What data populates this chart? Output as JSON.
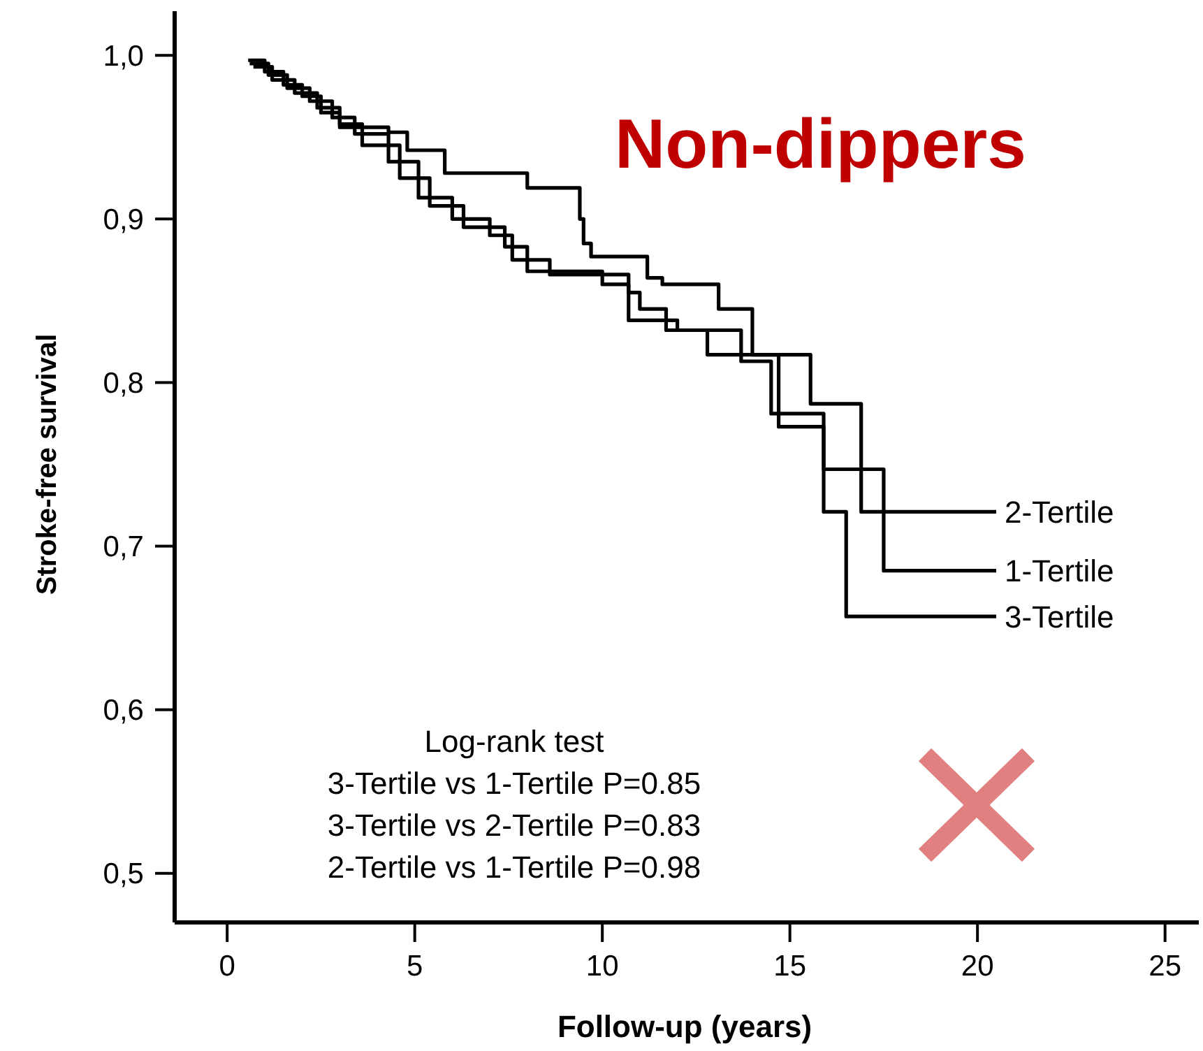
{
  "chart_data": {
    "type": "step",
    "title": "Non-dippers",
    "xlabel": "Follow-up (years)",
    "ylabel": "Stroke-free survival",
    "xlim": [
      -1.4,
      25.9
    ],
    "ylim": [
      0.47,
      1.027
    ],
    "xticks": [
      0,
      5,
      10,
      15,
      20,
      25
    ],
    "yticks": [
      {
        "value": 0.5,
        "label": "0,5"
      },
      {
        "value": 0.6,
        "label": "0,6"
      },
      {
        "value": 0.7,
        "label": "0,7"
      },
      {
        "value": 0.8,
        "label": "0,8"
      },
      {
        "value": 0.9,
        "label": "0,9"
      },
      {
        "value": 1.0,
        "label": "1,0"
      }
    ],
    "grid": false,
    "legend": false,
    "marker": "none",
    "line_style": "solid",
    "series": [
      {
        "name": "2-Tertile",
        "color": "#000000",
        "x": [
          0.56,
          1.0,
          1.5,
          2.0,
          2.5,
          3.0,
          4.3,
          4.8,
          5.8,
          8.0,
          9.4,
          9.5,
          9.7,
          11.2,
          11.6,
          13.1,
          14.0,
          15.55,
          16.9,
          20.5
        ],
        "values": [
          0.997,
          0.99,
          0.982,
          0.975,
          0.965,
          0.956,
          0.953,
          0.942,
          0.928,
          0.919,
          0.9,
          0.885,
          0.877,
          0.864,
          0.86,
          0.845,
          0.817,
          0.787,
          0.721,
          0.721
        ]
      },
      {
        "name": "1-Tertile",
        "color": "#000000",
        "x": [
          0.6,
          1.1,
          1.6,
          2.2,
          2.8,
          3.4,
          4.3,
          5.1,
          6.0,
          7.0,
          7.6,
          8.6,
          10.7,
          11.0,
          11.7,
          12.8,
          13.7,
          14.5,
          15.9,
          17.5,
          20.5
        ],
        "values": [
          0.995,
          0.988,
          0.98,
          0.972,
          0.962,
          0.952,
          0.935,
          0.913,
          0.9,
          0.89,
          0.875,
          0.866,
          0.855,
          0.845,
          0.832,
          0.817,
          0.813,
          0.781,
          0.747,
          0.685,
          0.685
        ]
      },
      {
        "name": "3-Tertile",
        "color": "#000000",
        "x": [
          0.7,
          1.2,
          1.8,
          2.4,
          3.0,
          3.6,
          4.6,
          5.4,
          6.3,
          7.4,
          8.0,
          10.0,
          10.7,
          12.0,
          13.7,
          14.7,
          15.9,
          16.5,
          20.5
        ],
        "values": [
          0.993,
          0.985,
          0.977,
          0.968,
          0.958,
          0.945,
          0.925,
          0.908,
          0.895,
          0.883,
          0.868,
          0.86,
          0.838,
          0.832,
          0.817,
          0.773,
          0.721,
          0.657,
          0.657
        ]
      }
    ],
    "annotations": [
      "Log-rank test",
      "3-Tertile vs 1-Tertile P=0.85",
      "3-Tertile vs 2-Tertile P=0.83",
      "2-Tertile vs 1-Tertile P=0.98"
    ]
  }
}
